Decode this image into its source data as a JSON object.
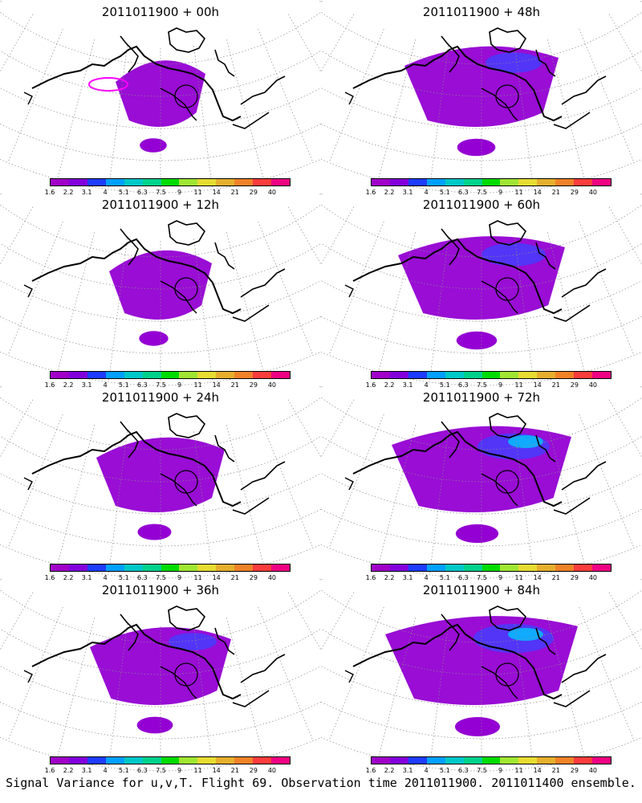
{
  "panels": [
    {
      "title": "2011011900 + 00h",
      "lead": "00h"
    },
    {
      "title": "2011011900 + 48h",
      "lead": "48h"
    },
    {
      "title": "2011011900 + 12h",
      "lead": "12h"
    },
    {
      "title": "2011011900 + 60h",
      "lead": "60h"
    },
    {
      "title": "2011011900 + 24h",
      "lead": "24h"
    },
    {
      "title": "2011011900 + 72h",
      "lead": "72h"
    },
    {
      "title": "2011011900 + 36h",
      "lead": "36h"
    },
    {
      "title": "2011011900 + 84h",
      "lead": "84h"
    }
  ],
  "colorbar": {
    "colors": [
      "#a000c8",
      "#8200dc",
      "#1e3cff",
      "#00a0ff",
      "#00c8c8",
      "#00d28c",
      "#00dc00",
      "#a0e632",
      "#e6dc32",
      "#e6af2d",
      "#f08228",
      "#fa3c3c",
      "#f00082"
    ],
    "ticks": [
      "1.6",
      "2.2",
      "3.1",
      "4",
      "5.1",
      "6.3",
      "7.5",
      "9",
      "11",
      "14",
      "21",
      "29",
      "40"
    ]
  },
  "caption": "Signal Variance for u,v,T. Flight 69. Observation time 2011011900. 2011011400 ensemble.",
  "map_colors": {
    "purple": "#9400d3",
    "blue": "#4040ff",
    "cyan": "#00c8ff",
    "magenta_contour": "#ff00ff",
    "coast": "#000000",
    "grid": "#8c8c8c"
  }
}
